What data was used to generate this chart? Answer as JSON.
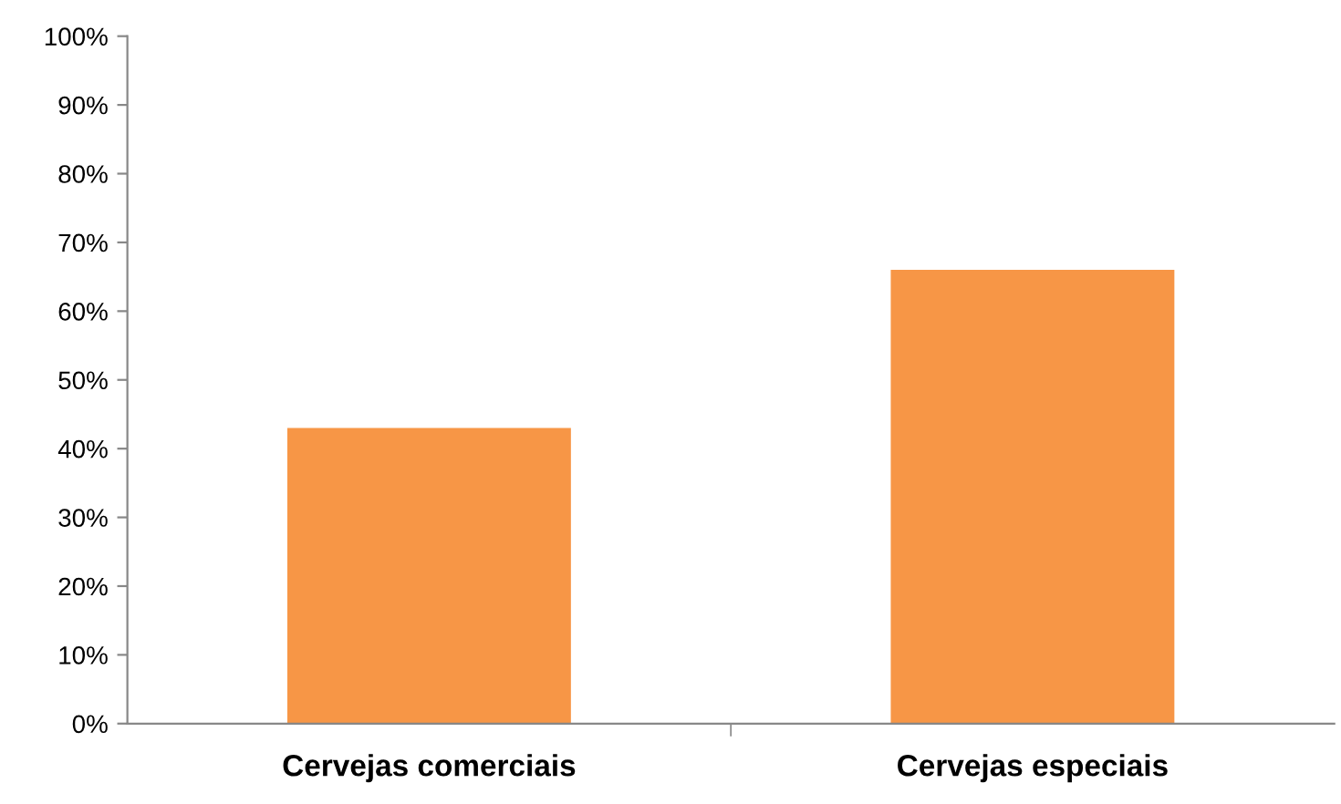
{
  "chart_data": {
    "type": "bar",
    "categories": [
      "Cervejas comerciais",
      "Cervejas especiais"
    ],
    "values": [
      43,
      66
    ],
    "color": "#f79646",
    "ylim": [
      0,
      100
    ],
    "yticks": [
      {
        "value": 0,
        "label": "0%"
      },
      {
        "value": 10,
        "label": "10%"
      },
      {
        "value": 20,
        "label": "20%"
      },
      {
        "value": 30,
        "label": "30%"
      },
      {
        "value": 40,
        "label": "40%"
      },
      {
        "value": 50,
        "label": "50%"
      },
      {
        "value": 60,
        "label": "60%"
      },
      {
        "value": 70,
        "label": "70%"
      },
      {
        "value": 80,
        "label": "80%"
      },
      {
        "value": 90,
        "label": "90%"
      },
      {
        "value": 100,
        "label": "100%"
      }
    ],
    "grid": false
  }
}
